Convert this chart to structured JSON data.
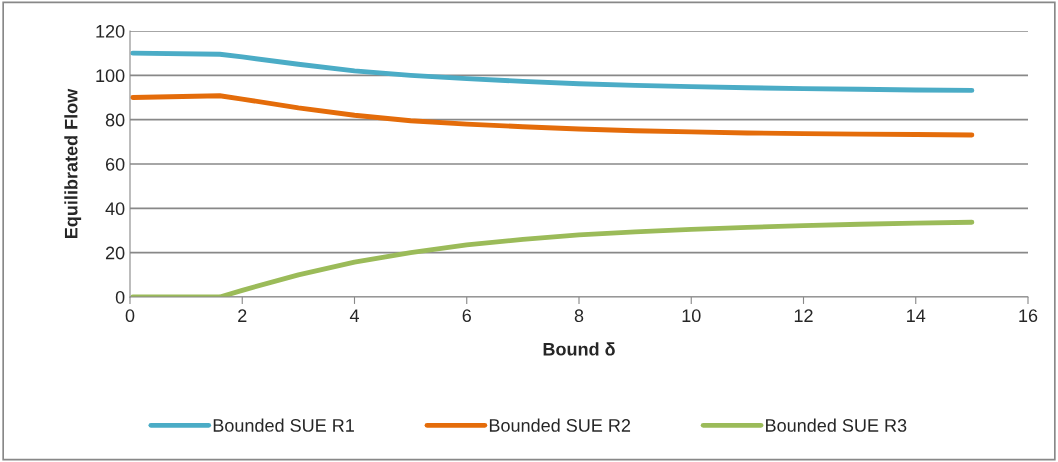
{
  "chart_data": {
    "type": "line",
    "xlabel": "Bound δ",
    "ylabel": "Equilibrated Flow",
    "x": [
      0.05,
      1.6,
      2,
      3,
      4,
      5,
      6,
      7,
      8,
      9,
      10,
      11,
      12,
      13,
      14,
      15
    ],
    "series": [
      {
        "name": "Bounded SUE R1",
        "color": "#4bacc6",
        "values": [
          110,
          109.5,
          108.3,
          105,
          102,
          100,
          98.5,
          97.3,
          96.2,
          95.5,
          94.9,
          94.4,
          94,
          93.7,
          93.4,
          93.2
        ]
      },
      {
        "name": "Bounded SUE R2",
        "color": "#e46c0a",
        "values": [
          90,
          90.8,
          89.3,
          85.3,
          82,
          79.5,
          78,
          76.8,
          75.8,
          75,
          74.5,
          74,
          73.7,
          73.5,
          73.3,
          73.1
        ]
      },
      {
        "name": "Bounded SUE R3",
        "color": "#9bbb59",
        "values": [
          0,
          0,
          3,
          10,
          15.7,
          20,
          23.5,
          26,
          28,
          29.4,
          30.5,
          31.4,
          32.2,
          32.8,
          33.3,
          33.7
        ]
      }
    ],
    "xlim": [
      0,
      16
    ],
    "xticks": [
      0,
      2,
      4,
      6,
      8,
      10,
      12,
      14,
      16
    ],
    "ylim": [
      0,
      120
    ],
    "yticks": [
      0,
      20,
      40,
      60,
      80,
      100,
      120
    ],
    "grid": "y",
    "legend": "bottom",
    "marker": "none",
    "line_style": "solid"
  }
}
